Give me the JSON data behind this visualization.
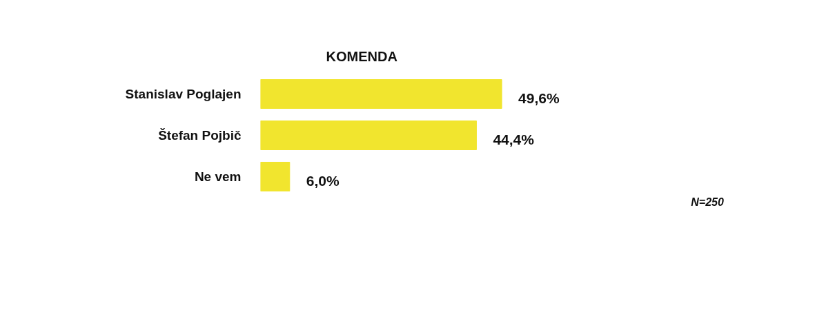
{
  "chart_data": {
    "type": "bar",
    "orientation": "horizontal",
    "title": "KOMENDA",
    "categories": [
      "Stanislav Poglajen",
      "Štefan Pojbič",
      "Ne vem"
    ],
    "values": [
      49.6,
      44.4,
      6.0
    ],
    "color": "#f1e52e",
    "value_labels": [
      "49,6%",
      "44,4%",
      "6,0%"
    ],
    "tick_labels": "y",
    "grid": false,
    "annotations": [
      "N=250"
    ]
  }
}
